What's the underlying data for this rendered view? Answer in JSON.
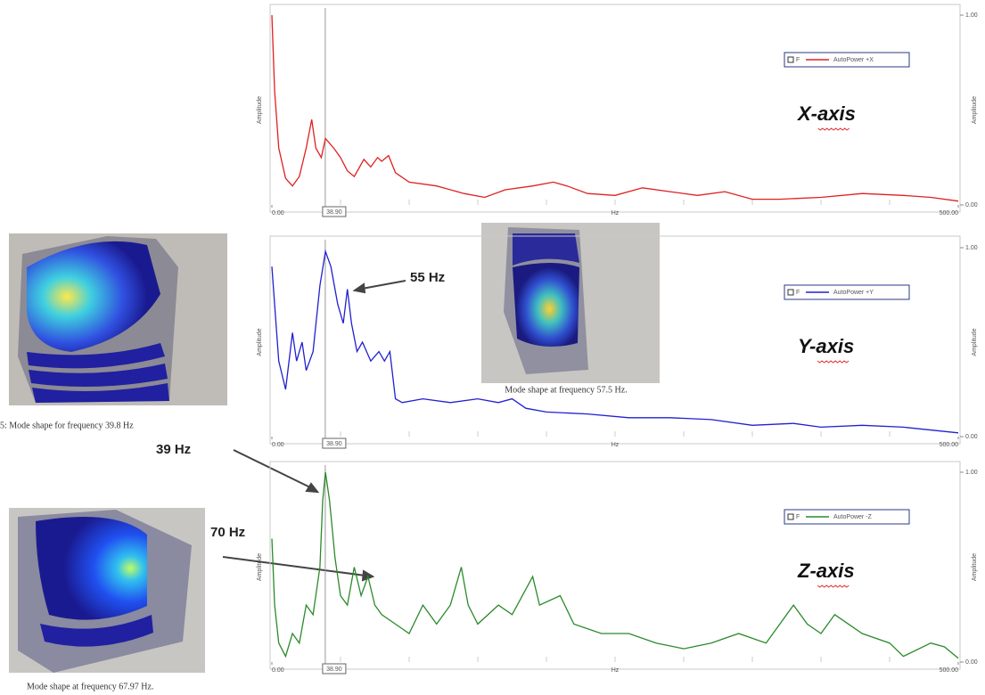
{
  "chart_data": [
    {
      "type": "line",
      "x_label": "Hz",
      "y_label": "Amplitude",
      "annotation": "X-axis",
      "cursor": {
        "value": 38.9,
        "label": "38.90"
      },
      "legend_marker_label": "F",
      "legend": "upper right",
      "xlim": [
        0,
        500
      ],
      "xticks": [
        {
          "value": 0,
          "label": "0.00"
        },
        {
          "value": 500,
          "label": "500.00"
        }
      ],
      "ylim": [
        0,
        1
      ],
      "yticks": [
        {
          "value": 0,
          "label": "0.00"
        },
        {
          "value": 1,
          "label": "1.00"
        }
      ],
      "x": [
        0,
        2,
        5,
        10,
        15,
        20,
        25,
        29,
        32,
        36,
        39,
        45,
        50,
        55,
        60,
        67,
        72,
        77,
        80,
        85,
        90,
        100,
        120,
        140,
        155,
        170,
        190,
        205,
        215,
        230,
        250,
        270,
        290,
        310,
        330,
        350,
        370,
        400,
        430,
        460,
        480,
        500
      ],
      "series": [
        {
          "name": "AutoPower +X",
          "color": "#e02020",
          "values": [
            1.0,
            0.6,
            0.3,
            0.14,
            0.1,
            0.15,
            0.3,
            0.45,
            0.3,
            0.25,
            0.35,
            0.3,
            0.25,
            0.18,
            0.15,
            0.24,
            0.2,
            0.25,
            0.23,
            0.26,
            0.17,
            0.12,
            0.1,
            0.06,
            0.04,
            0.08,
            0.1,
            0.12,
            0.1,
            0.06,
            0.05,
            0.09,
            0.07,
            0.05,
            0.07,
            0.03,
            0.03,
            0.04,
            0.06,
            0.05,
            0.04,
            0.02
          ]
        }
      ]
    },
    {
      "type": "line",
      "x_label": "Hz",
      "y_label": "Amplitude",
      "annotation": "Y-axis",
      "cursor": {
        "value": 38.9,
        "label": "38.90"
      },
      "legend_marker_label": "F",
      "legend": "upper right",
      "xlim": [
        0,
        500
      ],
      "xticks": [
        {
          "value": 0,
          "label": "0.00"
        },
        {
          "value": 500,
          "label": "500.00"
        }
      ],
      "ylim": [
        0,
        1
      ],
      "yticks": [
        {
          "value": 0,
          "label": "0.00"
        },
        {
          "value": 1,
          "label": "1.00"
        }
      ],
      "x": [
        0,
        5,
        10,
        15,
        18,
        22,
        25,
        30,
        35,
        39,
        43,
        48,
        52,
        55,
        58,
        62,
        66,
        72,
        78,
        82,
        86,
        90,
        95,
        110,
        130,
        150,
        165,
        175,
        185,
        200,
        230,
        260,
        290,
        320,
        350,
        380,
        400,
        430,
        460,
        500
      ],
      "series": [
        {
          "name": "AutoPower +Y",
          "color": "#2020d0",
          "values": [
            0.9,
            0.4,
            0.25,
            0.55,
            0.4,
            0.5,
            0.35,
            0.45,
            0.8,
            0.98,
            0.9,
            0.7,
            0.6,
            0.78,
            0.6,
            0.45,
            0.5,
            0.4,
            0.45,
            0.4,
            0.45,
            0.2,
            0.18,
            0.2,
            0.18,
            0.2,
            0.18,
            0.2,
            0.15,
            0.13,
            0.12,
            0.1,
            0.1,
            0.09,
            0.06,
            0.07,
            0.05,
            0.06,
            0.05,
            0.02
          ]
        }
      ]
    },
    {
      "type": "line",
      "x_label": "Hz",
      "y_label": "Amplitude",
      "annotation": "Z-axis",
      "cursor": {
        "value": 38.9,
        "label": "38.90"
      },
      "legend_marker_label": "F",
      "legend": "upper right",
      "xlim": [
        0,
        500
      ],
      "xticks": [
        {
          "value": 0,
          "label": "0.00"
        },
        {
          "value": 500,
          "label": "500.00"
        }
      ],
      "ylim": [
        0,
        1
      ],
      "yticks": [
        {
          "value": 0,
          "label": "0.00"
        },
        {
          "value": 1,
          "label": "1.00"
        }
      ],
      "x": [
        0,
        2,
        5,
        10,
        15,
        20,
        25,
        30,
        35,
        37,
        39,
        42,
        46,
        50,
        55,
        60,
        65,
        70,
        75,
        80,
        90,
        100,
        110,
        120,
        130,
        138,
        143,
        150,
        165,
        175,
        190,
        195,
        210,
        220,
        240,
        260,
        280,
        300,
        320,
        340,
        360,
        380,
        390,
        400,
        410,
        430,
        450,
        460,
        480,
        490,
        500
      ],
      "series": [
        {
          "name": "AutoPower -Z",
          "color": "#2a8a2a",
          "values": [
            0.65,
            0.3,
            0.1,
            0.03,
            0.15,
            0.1,
            0.3,
            0.25,
            0.5,
            0.85,
            1.0,
            0.85,
            0.55,
            0.35,
            0.3,
            0.5,
            0.35,
            0.45,
            0.3,
            0.25,
            0.2,
            0.15,
            0.3,
            0.2,
            0.3,
            0.5,
            0.3,
            0.2,
            0.3,
            0.25,
            0.45,
            0.3,
            0.35,
            0.2,
            0.15,
            0.15,
            0.1,
            0.07,
            0.1,
            0.15,
            0.1,
            0.3,
            0.2,
            0.15,
            0.25,
            0.15,
            0.1,
            0.03,
            0.1,
            0.08,
            0.02
          ]
        }
      ]
    }
  ],
  "figures": [
    {
      "caption": "5: Mode shape for frequency 39.8 Hz"
    },
    {
      "caption": "Mode shape at frequency 57.5 Hz."
    },
    {
      "caption": "Mode shape at frequency 67.97 Hz."
    }
  ],
  "annotations": [
    "55 Hz",
    "39 Hz",
    "70 Hz"
  ]
}
